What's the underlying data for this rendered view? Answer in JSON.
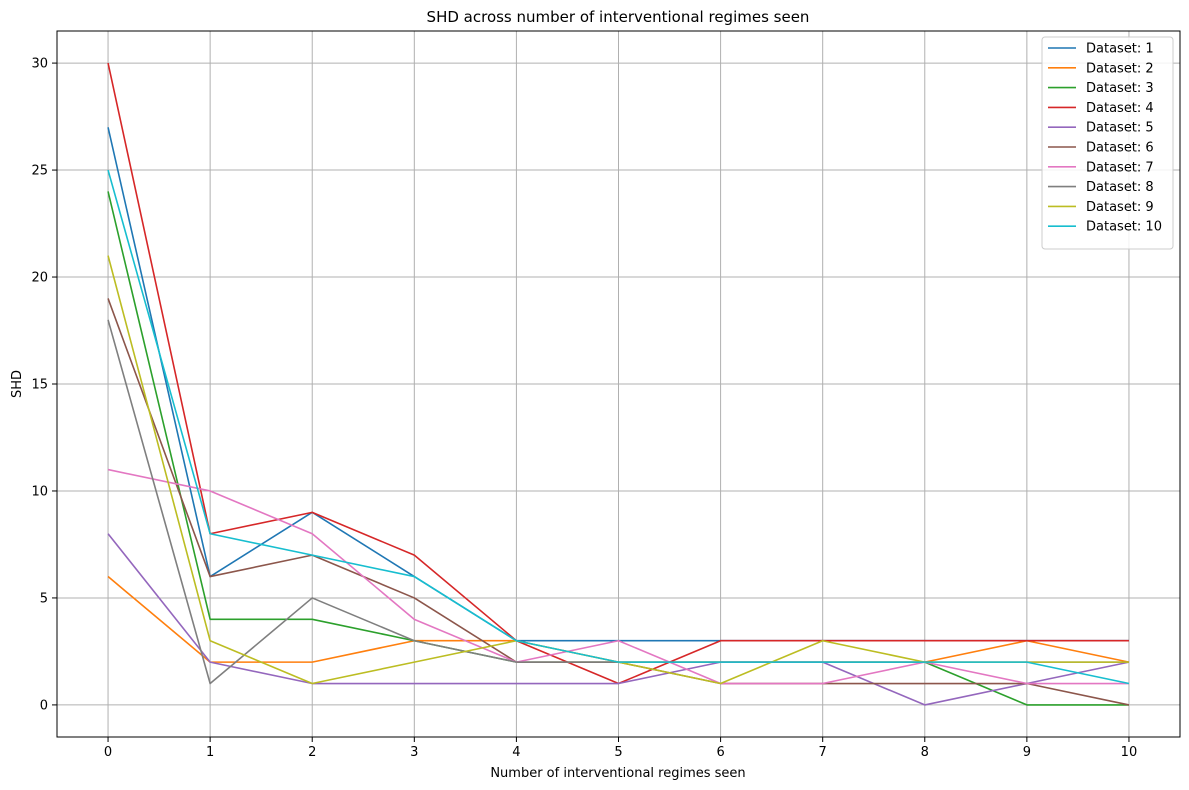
{
  "chart_data": {
    "type": "line",
    "title": "SHD across number of interventional regimes seen",
    "xlabel": "Number of interventional regimes seen",
    "ylabel": "SHD",
    "xlim": [
      -0.5,
      10.5
    ],
    "ylim": [
      -1.5,
      31.5
    ],
    "xticks": [
      0,
      1,
      2,
      3,
      4,
      5,
      6,
      7,
      8,
      9,
      10
    ],
    "yticks": [
      0,
      5,
      10,
      15,
      20,
      25,
      30
    ],
    "grid": true,
    "legend_position": "top-right",
    "x": [
      0,
      1,
      2,
      3,
      4,
      5,
      6,
      7,
      8,
      9,
      10
    ],
    "series": [
      {
        "name": "Dataset: 1",
        "color": "#1f77b4",
        "values": [
          27,
          6,
          9,
          6,
          3,
          3,
          3,
          3,
          3,
          3,
          3
        ]
      },
      {
        "name": "Dataset: 2",
        "color": "#ff7f0e",
        "values": [
          6,
          2,
          2,
          3,
          3,
          2,
          2,
          2,
          2,
          3,
          2
        ]
      },
      {
        "name": "Dataset: 3",
        "color": "#2ca02c",
        "values": [
          24,
          4,
          4,
          3,
          2,
          2,
          2,
          2,
          2,
          0,
          0
        ]
      },
      {
        "name": "Dataset: 4",
        "color": "#d62728",
        "values": [
          30,
          8,
          9,
          7,
          3,
          1,
          3,
          3,
          3,
          3,
          3
        ]
      },
      {
        "name": "Dataset: 5",
        "color": "#9467bd",
        "values": [
          8,
          2,
          1,
          1,
          1,
          1,
          2,
          2,
          0,
          1,
          2
        ]
      },
      {
        "name": "Dataset: 6",
        "color": "#8c564b",
        "values": [
          19,
          6,
          7,
          5,
          2,
          2,
          1,
          1,
          1,
          1,
          0
        ]
      },
      {
        "name": "Dataset: 7",
        "color": "#e377c2",
        "values": [
          11,
          10,
          8,
          4,
          2,
          3,
          1,
          1,
          2,
          1,
          1
        ]
      },
      {
        "name": "Dataset: 8",
        "color": "#7f7f7f",
        "values": [
          18,
          1,
          5,
          3,
          2,
          2,
          2,
          2,
          2,
          2,
          2
        ]
      },
      {
        "name": "Dataset: 9",
        "color": "#bcbd22",
        "values": [
          21,
          3,
          1,
          2,
          3,
          2,
          1,
          3,
          2,
          2,
          2
        ]
      },
      {
        "name": "Dataset: 10",
        "color": "#17becf",
        "values": [
          25,
          8,
          7,
          6,
          3,
          2,
          2,
          2,
          2,
          2,
          1
        ]
      }
    ]
  }
}
